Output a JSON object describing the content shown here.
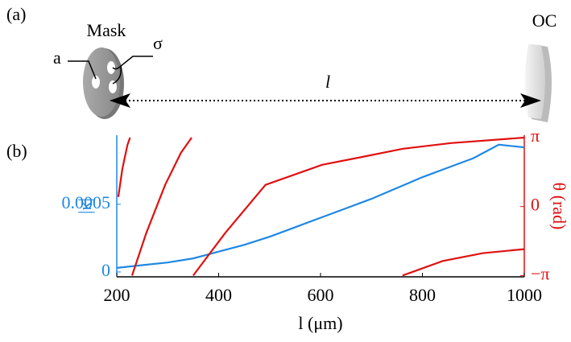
{
  "panel_labels": [
    "(a)",
    "(b)"
  ],
  "diagram": {
    "mask_label": "Mask",
    "aperture_label": "a",
    "spacing_label": "σ",
    "length_label": "l",
    "coupler_label": "OC"
  },
  "chart_data": {
    "type": "line",
    "xlabel": "l (μm)",
    "ylabel": "|κ|",
    "y2label": "θ (rad)",
    "xlim": [
      200,
      1000
    ],
    "xticks": [
      200,
      400,
      600,
      800,
      1000
    ],
    "ylim": [
      -3.6e-05,
      0.00101
    ],
    "yticks": [
      0,
      0.0005
    ],
    "y2lim": [
      -3.2,
      3.25
    ],
    "y2ticks": [
      {
        "value": -3.14159,
        "label": "−π"
      },
      0,
      {
        "value": 3.14159,
        "label": "π"
      }
    ],
    "ycolor": "#1e88e5",
    "y2color": "#e01010",
    "series": [
      {
        "color": "#1e88e5",
        "x": [
          200,
          250,
          300,
          350,
          400,
          450,
          500,
          550,
          600,
          650,
          700,
          750,
          800,
          850,
          900,
          950,
          1000
        ],
        "values": [
          3e-05,
          5e-05,
          7e-05,
          0.0001,
          0.00015,
          0.0002,
          0.00026,
          0.00033,
          0.0004,
          0.00047,
          0.00054,
          0.00062,
          0.0007,
          0.00077,
          0.00084,
          0.00094,
          0.00092
        ]
      },
      {
        "color": "#e01010",
        "axis": "y2",
        "x": [
          203,
          211,
          221,
          226
        ],
        "values": [
          0.44,
          1.72,
          2.81,
          3.14
        ]
      },
      {
        "color": "#e01010",
        "axis": "y2",
        "x": [
          230,
          258,
          295,
          326,
          347
        ],
        "values": [
          -3.14,
          -1.2,
          0.99,
          2.45,
          3.14
        ]
      },
      {
        "color": "#e01010",
        "axis": "y2",
        "x": [
          350,
          413,
          492,
          603,
          682,
          761,
          856,
          1000
        ],
        "values": [
          -3.14,
          -1.2,
          0.99,
          1.9,
          2.26,
          2.63,
          2.89,
          3.14
        ]
      },
      {
        "color": "#e01010",
        "axis": "y2",
        "x": [
          761,
          840,
          919,
          1000
        ],
        "values": [
          -3.14,
          -2.48,
          -2.12,
          -1.94
        ]
      }
    ]
  }
}
